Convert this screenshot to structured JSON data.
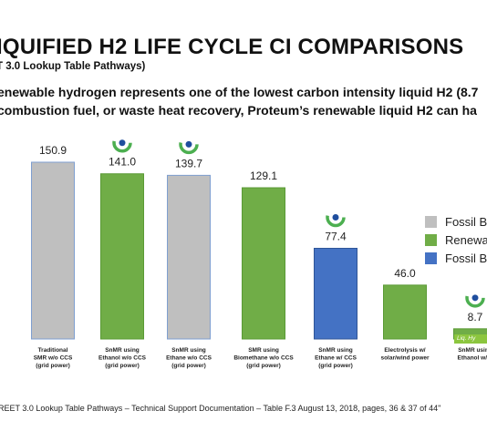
{
  "title": "IQUIFIED H2 LIFE CYCLE CI COMPARISONS",
  "subtitle": "T 3.0 Lookup Table Pathways)",
  "description": [
    "enewable hydrogen represents one of the lowest carbon intensity liquid H2 (8.7",
    "combustion fuel, or waste heat recovery, Proteum’s renewable liquid H2 can ha"
  ],
  "footnote": "REET 3.0 Lookup Table Pathways – Technical Support Documentation – Table F.3 August 13, 2018, pages, 36 & 37 of 44\"",
  "badge_label": "Liq. Hy",
  "legend": [
    {
      "label": "Fossil Bas",
      "color": "#bfbfbf"
    },
    {
      "label": "Renewabl",
      "color": "#70ad47"
    },
    {
      "label": "Fossil Bas",
      "color": "#4472c4"
    }
  ],
  "colors": {
    "fossil_grey": "#bfbfbf",
    "renewable_green": "#70ad47",
    "fossil_blue": "#4472c4",
    "grey_outline": "#7f9fd0",
    "green_outline": "#5a9a35",
    "blue_outline": "#2f5597",
    "logo_green": "#4caf50",
    "logo_blue": "#1f4e9e"
  },
  "chart_data": {
    "type": "bar",
    "categories": [
      [
        "Traditional",
        "SMR w/o CCS",
        "(grid power)"
      ],
      [
        "SnMR using",
        "Ethanol w/o CCS",
        "(grid power)"
      ],
      [
        "SnMR using",
        "Ethane w/o CCS",
        "(grid power)"
      ],
      [
        "SMR using",
        "Biomethane w/o CCS",
        "(grid power)"
      ],
      [
        "SnMR using",
        "Ethane w/ CCS",
        "(grid power)"
      ],
      [
        "Electrolysis w/",
        "solar/wind power"
      ],
      [
        "SnMR using",
        "Ethanol w/ C"
      ]
    ],
    "values": [
      150.9,
      141.0,
      139.7,
      129.1,
      77.4,
      46.0,
      8.7
    ],
    "value_labels": [
      "150.9",
      "141.0",
      "139.7",
      "129.1",
      "77.4",
      "46.0",
      "8.7"
    ],
    "bar_types": [
      "fossil_grey",
      "renewable_green",
      "fossil_grey",
      "renewable_green",
      "fossil_blue",
      "renewable_green",
      "renewable_green"
    ],
    "logos": [
      false,
      true,
      true,
      false,
      true,
      false,
      true
    ],
    "ylim": [
      0,
      160
    ],
    "grid": false,
    "legend_position": "right"
  }
}
